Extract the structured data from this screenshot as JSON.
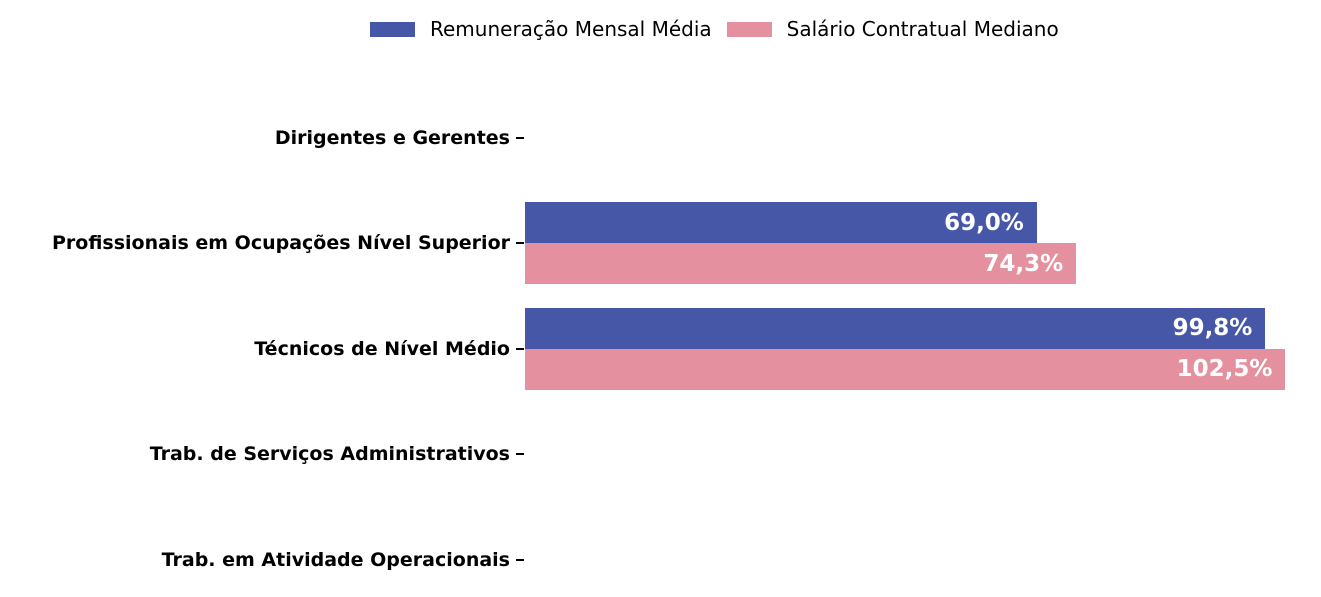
{
  "chart_data": {
    "type": "bar",
    "orientation": "horizontal",
    "title": "",
    "xlabel": "",
    "ylabel": "",
    "grid": false,
    "legend_position": "upper-center",
    "xlim": [
      0,
      107.3
    ],
    "value_label_color": "#ffffff",
    "categories": [
      "Dirigentes e Gerentes",
      "Profissionais em Ocupações Nível Superior",
      "Técnicos de Nível Médio",
      "Trab. de Serviços Administrativos",
      "Trab. em Atividade Operacionais"
    ],
    "series": [
      {
        "name": "Remuneração Mensal Média",
        "color": "#4757A8",
        "values": [
          null,
          69.0,
          99.8,
          null,
          null
        ],
        "value_labels": [
          "",
          "69,0%",
          "99,8%",
          "",
          ""
        ]
      },
      {
        "name": "Salário Contratual Mediano",
        "color": "#E4909E",
        "values": [
          null,
          74.3,
          102.5,
          null,
          null
        ],
        "value_labels": [
          "",
          "74,3%",
          "102,5%",
          "",
          ""
        ]
      }
    ]
  }
}
